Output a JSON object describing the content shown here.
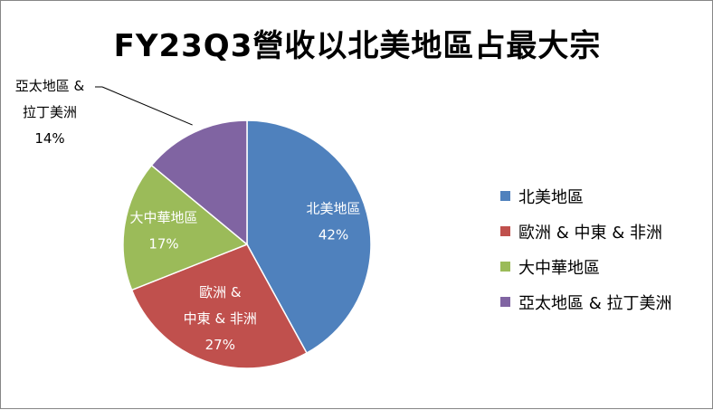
{
  "chart_data": {
    "type": "pie",
    "title": "FY23Q3營收以北美地區占最大宗",
    "legend_position": "right",
    "slices": [
      {
        "name": "北美地區",
        "value": 42,
        "value_label": "42%",
        "label_lines": [
          "北美地區"
        ],
        "color": "#4F81BD",
        "label_position": "inside"
      },
      {
        "name": "歐洲 & 中東 & 非洲",
        "value": 27,
        "value_label": "27%",
        "label_lines": [
          "歐洲 &",
          "中東 & 非洲"
        ],
        "color": "#C0504D",
        "label_position": "inside"
      },
      {
        "name": "大中華地區",
        "value": 17,
        "value_label": "17%",
        "label_lines": [
          "大中華地區"
        ],
        "color": "#9BBB59",
        "label_position": "inside"
      },
      {
        "name": "亞太地區 & 拉丁美洲",
        "value": 14,
        "value_label": "14%",
        "label_lines": [
          "亞太地區 &",
          "拉丁美洲"
        ],
        "color": "#8064A2",
        "label_position": "outside"
      }
    ]
  }
}
